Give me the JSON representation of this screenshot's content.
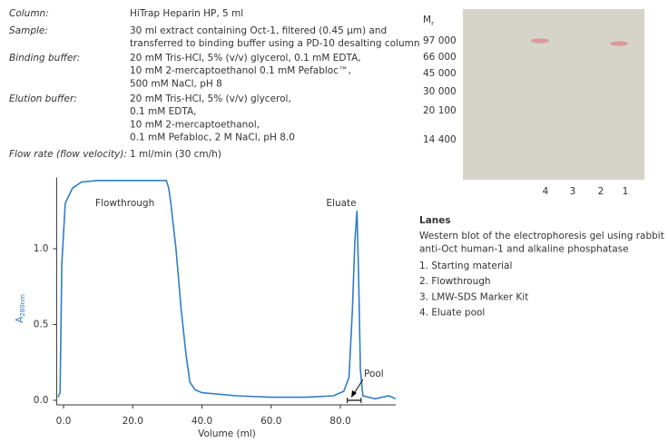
{
  "conditions": [
    {
      "label": "Column:",
      "value": [
        "HiTrap Heparin HP, 5 ml"
      ]
    },
    {
      "label": "Sample:",
      "value": [
        "30 ml extract containing Oct-1, filtered (0.45 µm) and",
        "transferred to binding buffer using a PD-10 desalting column"
      ]
    },
    {
      "label": "Binding buffer:",
      "value": [
        "20 mM Tris-HCl, 5% (v/v) glycerol, 0.1 mM EDTA,",
        "10 mM 2-mercaptoethanol 0.1 mM Pefabloc™,",
        "500 mM NaCl, pH 8"
      ]
    },
    {
      "label": "Elution buffer:",
      "value": [
        "20 mM Tris-HCl, 5% (v/v) glycerol,",
        "0.1 mM EDTA,",
        "10 mM 2-mercaptoethanol,",
        "0.1 mM Pefabloc, 2 M NaCl, pH 8.0"
      ]
    },
    {
      "label": "Flow rate (flow velocity):",
      "value": [
        "1 ml/min (30 cm/h)"
      ]
    }
  ],
  "chart_data": {
    "type": "line",
    "color": "#2f7cc8",
    "xlabel": "Volume (ml)",
    "ylabel": "A",
    "ylabel_sub": "280nm",
    "x": [
      -1.6,
      -1,
      -0.5,
      0.5,
      2.6,
      5.2,
      10,
      20,
      29.7,
      30.4,
      31,
      32.5,
      34,
      35.4,
      36.5,
      38,
      40,
      50,
      60,
      70,
      78,
      81,
      82.5,
      83.5,
      84.2,
      84.8,
      85.3,
      85.8,
      86.5,
      90,
      94,
      96
    ],
    "values": [
      0.02,
      0.05,
      0.9,
      1.3,
      1.4,
      1.44,
      1.45,
      1.45,
      1.45,
      1.4,
      1.3,
      1.0,
      0.6,
      0.3,
      0.12,
      0.07,
      0.05,
      0.03,
      0.02,
      0.02,
      0.03,
      0.06,
      0.15,
      0.6,
      1.05,
      1.25,
      0.8,
      0.2,
      0.03,
      0.01,
      0.03,
      0.01
    ],
    "xlim": [
      -2,
      96
    ],
    "ylim": [
      -0.03,
      1.47
    ],
    "xticks": [
      {
        "value": 0,
        "label": "0.0"
      },
      {
        "value": 20,
        "label": "20.0"
      },
      {
        "value": 40,
        "label": "40.0"
      },
      {
        "value": 60,
        "label": "60.0"
      },
      {
        "value": 80,
        "label": "80.0"
      }
    ],
    "yticks": [
      {
        "value": 0,
        "label": "0.0"
      },
      {
        "value": 0.5,
        "label": "0.5"
      },
      {
        "value": 1,
        "label": "1.0"
      }
    ],
    "annotations": [
      "Flowthrough",
      "Eluate"
    ],
    "pool": {
      "label": "Pool",
      "range": [
        82,
        86
      ]
    }
  },
  "gel": {
    "mr": "M",
    "mr_sub": "r",
    "markers": [
      "97 000",
      "66 000",
      "45 000",
      "30 000",
      "20 100",
      "14 400"
    ],
    "lane_labels": [
      "4",
      "3",
      "2",
      "1"
    ]
  },
  "lanes": {
    "title": "Lanes",
    "description": [
      "Western blot of the electrophoresis gel using rabbit",
      "anti-Oct human-1 and alkaline phosphatase"
    ],
    "items": [
      "1.  Starting material",
      "2.  Flowthrough",
      "3.  LMW-SDS Marker Kit",
      "4.  Eluate pool"
    ]
  }
}
